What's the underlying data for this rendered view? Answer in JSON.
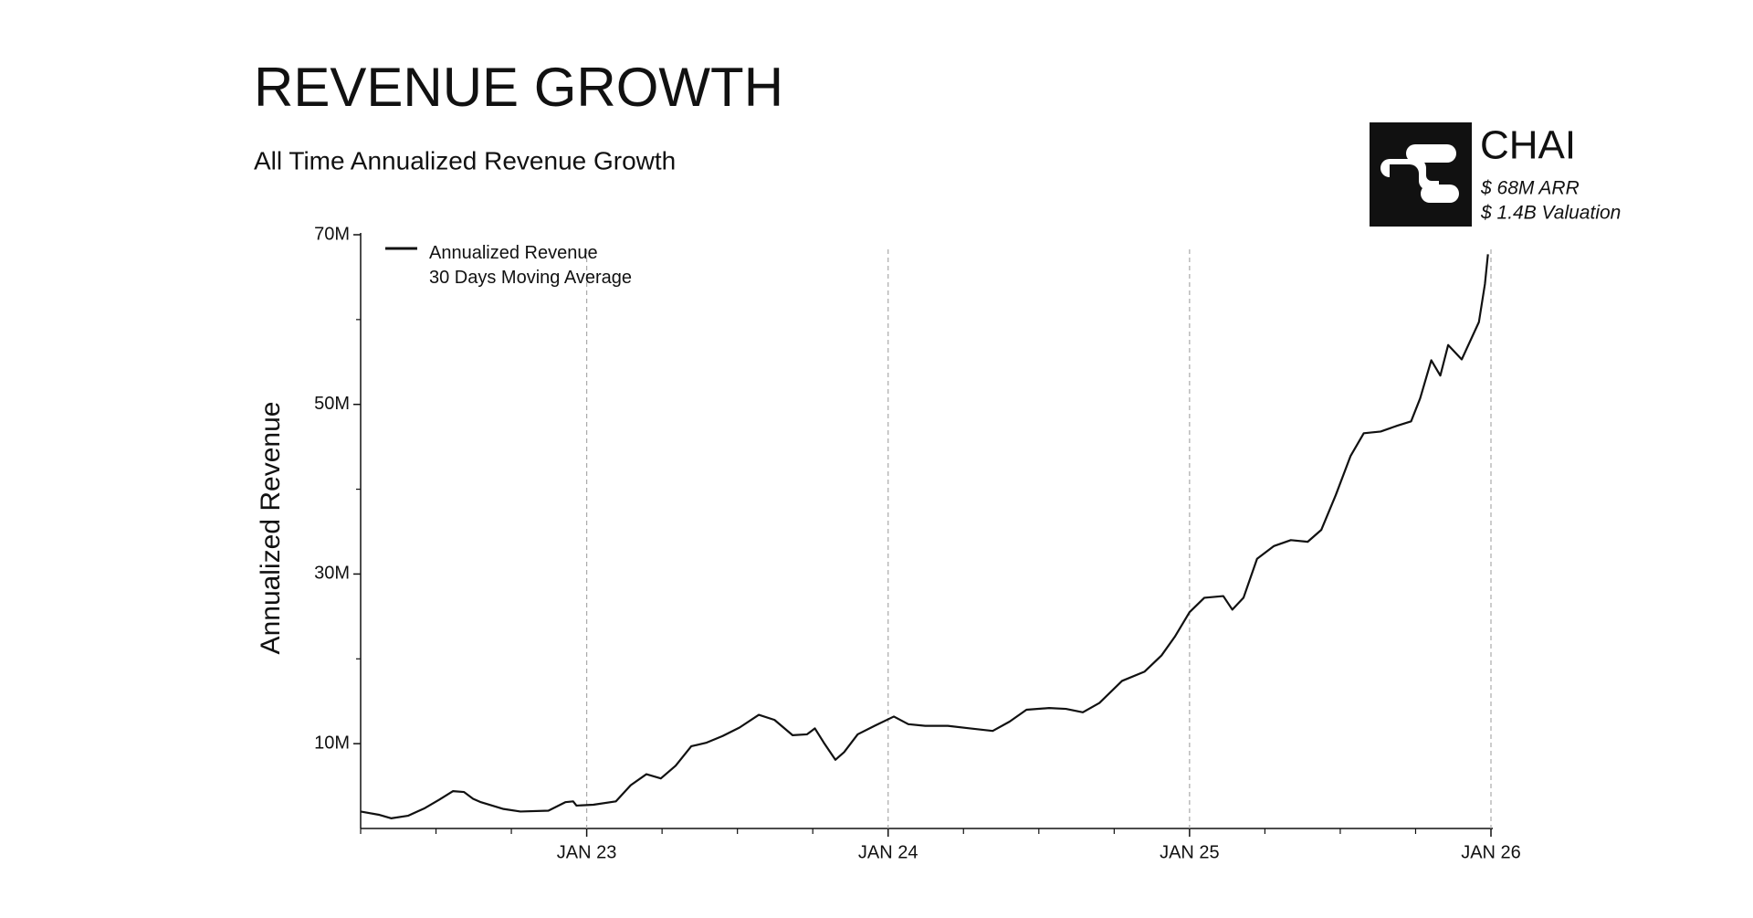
{
  "chart_data": {
    "type": "line",
    "title": "REVENUE GROWTH",
    "subtitle": "All Time Annualized Revenue Growth",
    "y_label": "Annualized Revenue",
    "x": [
      2022.25,
      2022.313,
      2022.351,
      2022.407,
      2022.463,
      2022.511,
      2022.556,
      2022.593,
      2022.623,
      2022.649,
      2022.724,
      2022.78,
      2022.873,
      2022.929,
      2022.955,
      2022.966,
      2023.022,
      2023.097,
      2023.146,
      2023.198,
      2023.246,
      2023.295,
      2023.347,
      2023.396,
      2023.451,
      2023.507,
      2023.571,
      2023.623,
      2023.683,
      2023.731,
      2023.757,
      2023.787,
      2023.825,
      2023.854,
      2023.899,
      2023.955,
      2024.019,
      2024.067,
      2024.123,
      2024.198,
      2024.272,
      2024.347,
      2024.403,
      2024.459,
      2024.534,
      2024.59,
      2024.646,
      2024.701,
      2024.776,
      2024.851,
      2024.907,
      2024.951,
      2025.0,
      2025.049,
      2025.112,
      2025.142,
      2025.179,
      2025.224,
      2025.28,
      2025.336,
      2025.392,
      2025.437,
      2025.485,
      2025.534,
      2025.578,
      2025.634,
      2025.69,
      2025.735,
      2025.765,
      2025.802,
      2025.832,
      2025.858,
      2025.903,
      2025.96,
      2025.98,
      2025.99
    ],
    "series": [
      {
        "name": "Annualized Revenue\n30 Days Moving Average",
        "color": "#111111",
        "values": [
          2.0,
          1.6,
          1.2,
          1.5,
          2.4,
          3.4,
          4.4,
          4.3,
          3.5,
          3.1,
          2.3,
          2.0,
          2.1,
          3.1,
          3.2,
          2.7,
          2.8,
          3.2,
          5.1,
          6.4,
          5.9,
          7.4,
          9.7,
          10.1,
          10.9,
          11.9,
          13.4,
          12.8,
          11.0,
          11.1,
          11.8,
          10.1,
          8.1,
          9.0,
          11.1,
          12.1,
          13.2,
          12.3,
          12.1,
          12.1,
          11.8,
          11.5,
          12.6,
          14.0,
          14.2,
          14.1,
          13.7,
          14.8,
          17.4,
          18.5,
          20.4,
          22.6,
          25.5,
          27.2,
          27.4,
          25.8,
          27.2,
          31.8,
          33.3,
          34.0,
          33.8,
          35.2,
          39.3,
          43.9,
          46.6,
          46.8,
          47.5,
          48.0,
          50.7,
          55.2,
          53.4,
          57.0,
          55.3,
          59.7,
          64.2,
          67.7
        ]
      }
    ],
    "xlim": [
      2022.25,
      2026
    ],
    "xticks": [
      {
        "value": 2023,
        "label": "JAN 23"
      },
      {
        "value": 2024,
        "label": "JAN 24"
      },
      {
        "value": 2025,
        "label": "JAN 25"
      },
      {
        "value": 2026,
        "label": "JAN 26"
      }
    ],
    "xminor_ticks": [
      2022.25,
      2022.5,
      2022.75,
      2023.25,
      2023.5,
      2023.75,
      2024.25,
      2024.5,
      2024.75,
      2025.25,
      2025.5,
      2025.75
    ],
    "ylim": [
      0,
      70
    ],
    "yticks": [
      {
        "value": 10,
        "label": "10M"
      },
      {
        "value": 30,
        "label": "30M"
      },
      {
        "value": 50,
        "label": "50M"
      },
      {
        "value": 70,
        "label": "70M"
      }
    ],
    "yminor_ticks": [
      20,
      40,
      60
    ],
    "xgrid": true,
    "legend": "top-left"
  },
  "company": {
    "name": "CHAI",
    "arr": "$ 68M ARR",
    "valuation": "$ 1.4B Valuation"
  }
}
